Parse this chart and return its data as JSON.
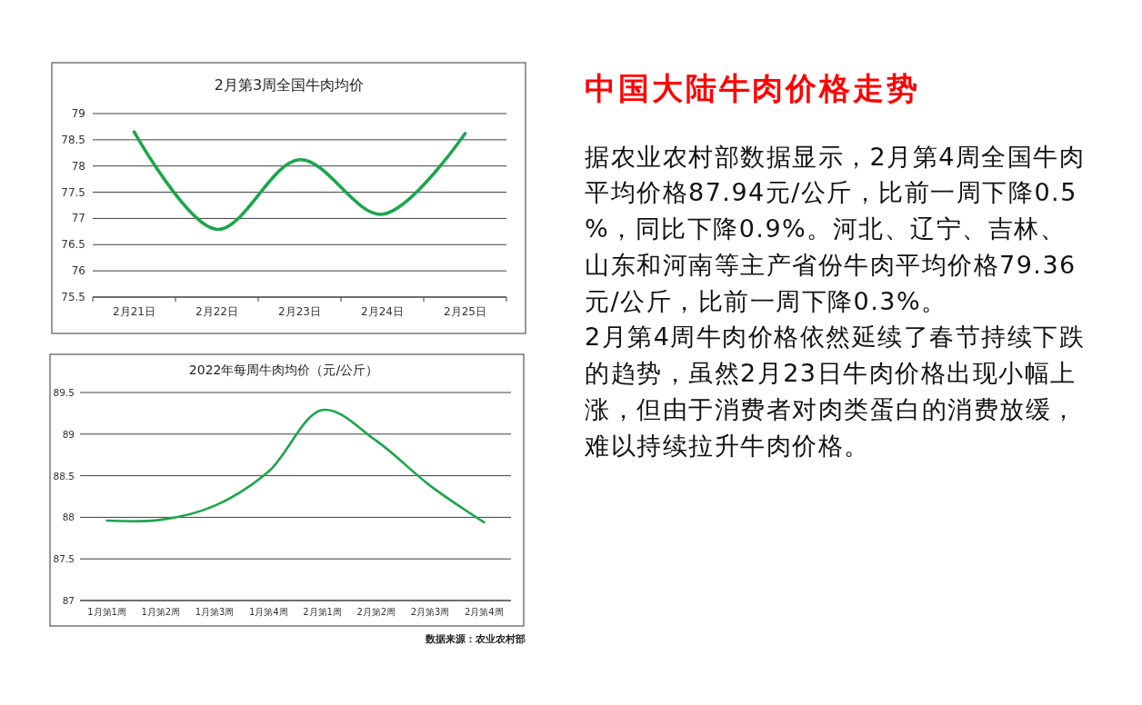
{
  "chart_data": [
    {
      "type": "line",
      "title": "2月第3周全国牛肉均价",
      "categories": [
        "2月21日",
        "2月22日",
        "2月23日",
        "2月24日",
        "2月25日"
      ],
      "values": [
        78.65,
        76.79,
        78.12,
        77.08,
        78.62
      ],
      "color": "#1aa64b",
      "ylim": [
        75.5,
        79
      ],
      "yticks": [
        75.5,
        76,
        76.5,
        77,
        77.5,
        78,
        78.5,
        79
      ],
      "grid": "y"
    },
    {
      "type": "line",
      "title": "2022年每周牛肉均价（元/公斤）",
      "categories": [
        "1月第1周",
        "1月第2周",
        "1月第3周",
        "1月第4周",
        "2月第1周",
        "2月第2周",
        "2月第3周",
        "2月第4周"
      ],
      "values": [
        87.96,
        87.97,
        88.14,
        88.55,
        89.29,
        88.92,
        88.38,
        87.94
      ],
      "color": "#1aa64b",
      "ylim": [
        87,
        89.5
      ],
      "yticks": [
        87,
        87.5,
        88,
        88.5,
        89,
        89.5
      ],
      "grid": "y",
      "annotations": [
        "数据来源：农业农村部"
      ]
    },
    {
      "type": "other",
      "title": "中国大陆牛肉价格走势",
      "annotations": [
        "据农业农村部数据显示，2月第4周全国牛肉平均价格87.94元/公斤，比前一周下降0.5%，同比下降0.9%。河北、辽宁、吉林、山东和河南等主产省份牛肉平均价格79.36元/公斤，比前一周下降0.3%。",
        "2月第4周牛肉价格依然延续了春节持续下跌的趋势，虽然2月23日牛肉价格出现小幅上涨，但由于消费者对肉类蛋白的消费放缓，难以持续拉升牛肉价格。"
      ]
    }
  ]
}
